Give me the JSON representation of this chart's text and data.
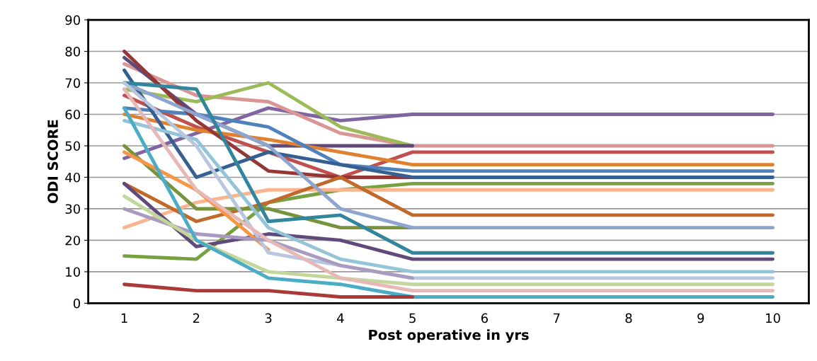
{
  "chart_data": {
    "type": "line",
    "xlabel": "Post operative in yrs",
    "ylabel": "ODI SCORE",
    "x": [
      1,
      2,
      3,
      4,
      5,
      6,
      7,
      8,
      9,
      10
    ],
    "xlim": [
      0.5,
      10.5
    ],
    "xticks": [
      1,
      2,
      3,
      4,
      5,
      6,
      7,
      8,
      9,
      10
    ],
    "ylim": [
      0,
      90
    ],
    "yticks": [
      0,
      10,
      20,
      30,
      40,
      50,
      60,
      70,
      80,
      90
    ],
    "grid": "y",
    "legend": false,
    "marker": "none",
    "line_style": "solid",
    "series": [
      {
        "color": "#8064a2",
        "values": [
          46,
          54,
          62,
          58,
          60,
          60,
          60,
          60,
          60,
          60
        ]
      },
      {
        "color": "#d99694",
        "values": [
          76,
          66,
          64,
          54,
          50,
          50,
          50,
          50,
          50,
          50
        ]
      },
      {
        "color": "#9bbb59",
        "values": [
          68,
          64,
          70,
          56,
          50,
          null,
          null,
          null,
          null,
          null
        ]
      },
      {
        "color": "#5f497a",
        "values": [
          78,
          60,
          50,
          50,
          50,
          null,
          null,
          null,
          null,
          null
        ]
      },
      {
        "color": "#c0504d",
        "values": [
          66,
          56,
          48,
          40,
          48,
          48,
          48,
          48,
          48,
          48
        ]
      },
      {
        "color": "#e0812f",
        "values": [
          60,
          55,
          52,
          48,
          44,
          44,
          44,
          44,
          44,
          44
        ]
      },
      {
        "color": "#4f81bd",
        "values": [
          62,
          60,
          56,
          44,
          42,
          42,
          42,
          42,
          42,
          42
        ]
      },
      {
        "color": "#953735",
        "values": [
          80,
          58,
          42,
          40,
          40,
          null,
          null,
          null,
          null,
          null
        ]
      },
      {
        "color": "#376092",
        "values": [
          74,
          40,
          48,
          44,
          40,
          40,
          40,
          40,
          40,
          40
        ]
      },
      {
        "color": "#77a040",
        "values": [
          15,
          14,
          32,
          36,
          38,
          38,
          38,
          38,
          38,
          38
        ]
      },
      {
        "color": "#fab58f",
        "values": [
          24,
          32,
          36,
          36,
          36,
          36,
          36,
          36,
          36,
          36
        ]
      },
      {
        "color": "#c0692b",
        "values": [
          38,
          26,
          32,
          40,
          28,
          28,
          28,
          28,
          28,
          28
        ]
      },
      {
        "color": "#77933c",
        "values": [
          50,
          30,
          30,
          24,
          24,
          null,
          null,
          null,
          null,
          null
        ]
      },
      {
        "color": "#8ea5cf",
        "values": [
          70,
          60,
          50,
          30,
          24,
          24,
          24,
          24,
          24,
          24
        ]
      },
      {
        "color": "#31859c",
        "values": [
          70,
          68,
          26,
          28,
          16,
          16,
          16,
          16,
          16,
          16
        ]
      },
      {
        "color": "#604a7b",
        "values": [
          38,
          18,
          22,
          20,
          14,
          14,
          14,
          14,
          14,
          14
        ]
      },
      {
        "color": "#f79646",
        "values": [
          48,
          36,
          17,
          null,
          null,
          null,
          null,
          null,
          null,
          null
        ]
      },
      {
        "color": "#93c4d8",
        "values": [
          58,
          52,
          24,
          14,
          10,
          10,
          10,
          10,
          10,
          10
        ]
      },
      {
        "color": "#b9c6e0",
        "values": [
          70,
          50,
          16,
          12,
          8,
          8,
          8,
          8,
          8,
          8
        ]
      },
      {
        "color": "#a99bc0",
        "values": [
          30,
          22,
          20,
          12,
          8,
          null,
          null,
          null,
          null,
          null
        ]
      },
      {
        "color": "#c3d69b",
        "values": [
          34,
          20,
          10,
          8,
          6,
          6,
          6,
          6,
          6,
          6
        ]
      },
      {
        "color": "#e6b9b8",
        "values": [
          68,
          36,
          20,
          8,
          4,
          4,
          4,
          4,
          4,
          4
        ]
      },
      {
        "color": "#4bacc6",
        "values": [
          62,
          20,
          8,
          6,
          2,
          2,
          2,
          2,
          2,
          2
        ]
      },
      {
        "color": "#a93a37",
        "values": [
          6,
          4,
          4,
          2,
          2,
          null,
          null,
          null,
          null,
          null
        ]
      }
    ]
  }
}
